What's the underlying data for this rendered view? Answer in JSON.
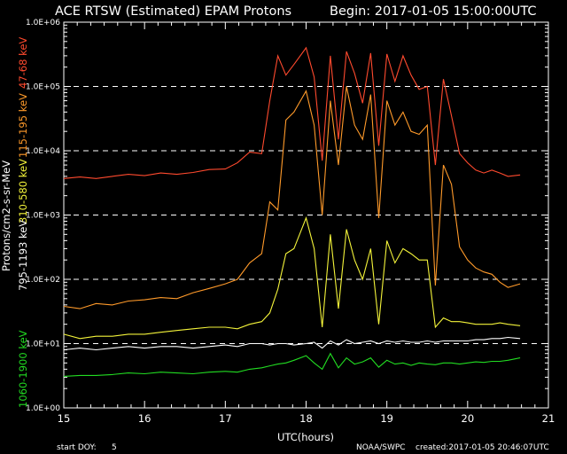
{
  "header": {
    "title": "ACE RTSW (Estimated) EPAM Protons",
    "begin": "Begin: 2017-01-05 15:00:00UTC"
  },
  "footer": {
    "start_doy_label": "start DOY:",
    "start_doy_value": "5",
    "agency": "NOAA/SWPC",
    "created": "created:2017-01-05 20:46:07UTC"
  },
  "colors": {
    "background": "#000000",
    "axis": "#ffffff",
    "ch_47_68": "#ff4a2e",
    "ch_115_195": "#ff9a2a",
    "ch_310_580": "#f4f43a",
    "ch_795_1193": "#ffffff",
    "ch_1060_1900": "#22dd22"
  },
  "chart_data": {
    "type": "line",
    "title": "ACE RTSW (Estimated) EPAM Protons",
    "xlabel": "UTC(hours)",
    "ylabel": "Protons/cm2-s-sr-MeV",
    "xlim": [
      15,
      21
    ],
    "ylim": [
      1,
      1000000
    ],
    "yscale": "log",
    "grid": "dashed horizontal lines at 1.0E+01 through 1.0E+05",
    "x_ticks": [
      "15",
      "16",
      "17",
      "18",
      "19",
      "20",
      "21"
    ],
    "y_ticks": [
      "1.0E+00",
      "1.0E+01",
      "1.0E+02",
      "1.0E+03",
      "1.0E+04",
      "1.0E+05",
      "1.0E+06"
    ],
    "x": [
      15.0,
      15.2,
      15.4,
      15.6,
      15.8,
      16.0,
      16.2,
      16.4,
      16.6,
      16.8,
      17.0,
      17.15,
      17.3,
      17.45,
      17.55,
      17.65,
      17.75,
      17.85,
      18.0,
      18.1,
      18.2,
      18.3,
      18.4,
      18.5,
      18.6,
      18.7,
      18.8,
      18.9,
      19.0,
      19.1,
      19.2,
      19.3,
      19.4,
      19.5,
      19.6,
      19.7,
      19.8,
      19.9,
      20.0,
      20.1,
      20.2,
      20.3,
      20.4,
      20.5,
      20.65
    ],
    "series": [
      {
        "name": "47-68 keV",
        "color": "#ff4a2e",
        "values": [
          3700,
          3900,
          3700,
          4000,
          4300,
          4100,
          4500,
          4300,
          4600,
          5100,
          5200,
          6500,
          9500,
          9000,
          60000,
          300000,
          150000,
          220000,
          400000,
          140000,
          7000,
          300000,
          15000,
          350000,
          160000,
          55000,
          330000,
          12000,
          320000,
          120000,
          300000,
          150000,
          90000,
          100000,
          6000,
          130000,
          35000,
          9000,
          6500,
          5000,
          4500,
          5000,
          4500,
          4000,
          4200
        ]
      },
      {
        "name": "115-195 keV",
        "color": "#ff9a2a",
        "values": [
          38,
          35,
          42,
          40,
          46,
          48,
          52,
          50,
          62,
          72,
          85,
          100,
          180,
          250,
          1600,
          1200,
          30000,
          40000,
          85000,
          25000,
          1000,
          60000,
          6000,
          100000,
          25000,
          15000,
          75000,
          900,
          60000,
          25000,
          40000,
          20000,
          18000,
          25000,
          80,
          6000,
          3000,
          320,
          200,
          150,
          130,
          120,
          90,
          75,
          85
        ]
      },
      {
        "name": "310-580 keV",
        "color": "#f4f43a",
        "values": [
          14,
          12,
          13,
          13,
          14,
          14,
          15,
          16,
          17,
          18,
          18,
          17,
          20,
          22,
          30,
          70,
          250,
          300,
          900,
          300,
          18,
          500,
          35,
          600,
          200,
          100,
          300,
          20,
          400,
          180,
          300,
          250,
          200,
          200,
          18,
          25,
          22,
          22,
          21,
          20,
          20,
          20,
          21,
          20,
          19
        ]
      },
      {
        "name": "795-1193 keV",
        "color": "#ffffff",
        "values": [
          8,
          8.5,
          8,
          8.5,
          9,
          8.5,
          9,
          9,
          8.5,
          9,
          9.5,
          9,
          10,
          10,
          9.5,
          10,
          10,
          9.5,
          10,
          10.5,
          8.5,
          11,
          9.5,
          11.5,
          10,
          10.5,
          11,
          10,
          11,
          10.5,
          11,
          10.5,
          10.5,
          11,
          10.5,
          11,
          11,
          11,
          11,
          11.5,
          11.5,
          12,
          12,
          12.5,
          12
        ]
      },
      {
        "name": "1060-1900 keV",
        "color": "#22dd22",
        "values": [
          3.1,
          3.2,
          3.2,
          3.3,
          3.5,
          3.4,
          3.6,
          3.5,
          3.4,
          3.6,
          3.7,
          3.6,
          4,
          4.2,
          4.5,
          4.8,
          5,
          5.5,
          6.5,
          5,
          4,
          7,
          4.2,
          6,
          4.8,
          5.2,
          6,
          4.3,
          5.5,
          4.8,
          5,
          4.6,
          5,
          4.8,
          4.7,
          5,
          5,
          4.8,
          5,
          5.2,
          5.1,
          5.3,
          5.3,
          5.5,
          6
        ]
      }
    ]
  }
}
